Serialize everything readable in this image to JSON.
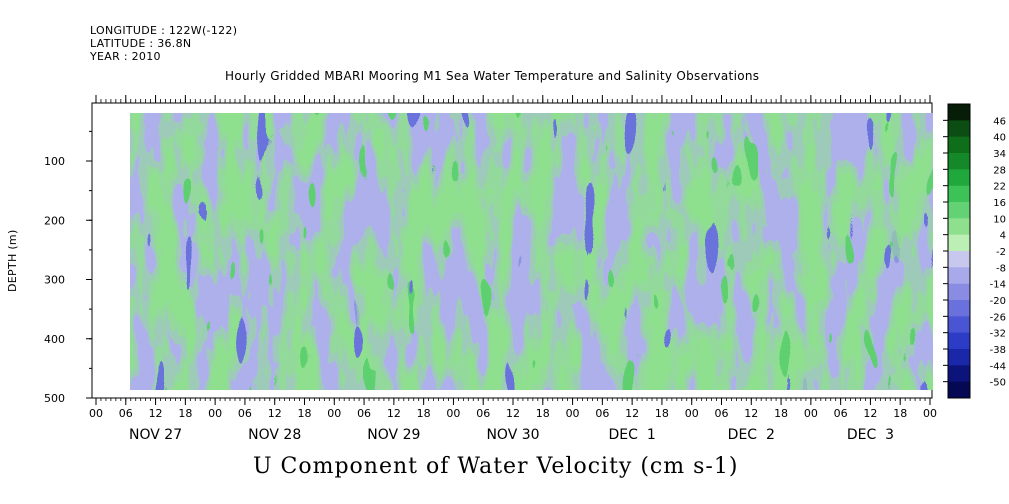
{
  "header": {
    "longitude": "LONGITUDE : 122W(-122)",
    "latitude": "LATITUDE : 36.8N",
    "year": "YEAR : 2010",
    "title": "Hourly Gridded MBARI Mooring M1 Sea Water Temperature and Salinity Observations"
  },
  "chart_data": {
    "type": "heatmap",
    "title": "Hourly Gridded MBARI Mooring M1 Sea Water Temperature and Salinity Observations",
    "xlabel": "U Component of Water Velocity (cm s-1)",
    "ylabel": "DEPTH (m)",
    "y_ticks": [
      100,
      200,
      300,
      400,
      500
    ],
    "ylim": [
      500,
      0
    ],
    "x_hour_labels": [
      "00",
      "06",
      "12",
      "18",
      "00",
      "06",
      "12",
      "18",
      "00",
      "06",
      "12",
      "18",
      "00",
      "06",
      "12",
      "18",
      "00",
      "06",
      "12",
      "18",
      "00",
      "06",
      "12",
      "18",
      "00",
      "06",
      "12",
      "18",
      "00"
    ],
    "x_day_labels": [
      "NOV 27",
      "NOV 28",
      "NOV 29",
      "NOV 30",
      "DEC  1",
      "DEC  2",
      "DEC  3"
    ],
    "colorbar": {
      "levels": [
        -50,
        -44,
        -38,
        -32,
        -26,
        -20,
        -14,
        -8,
        -2,
        4,
        10,
        16,
        22,
        28,
        34,
        40,
        46
      ],
      "labels": [
        "46",
        "40",
        "34",
        "28",
        "22",
        "16",
        "10",
        "4",
        "-2",
        "-8",
        "-14",
        "-20",
        "-26",
        "-32",
        "-38",
        "-44",
        "-50"
      ],
      "colors": [
        "#071d07",
        "#0b4d12",
        "#0f6e1a",
        "#15882a",
        "#20a83c",
        "#3dc257",
        "#63d274",
        "#8fe08e",
        "#bcefb3",
        "#c8c8ef",
        "#a8a9ea",
        "#8a8ce3",
        "#6a70dc",
        "#4a55d3",
        "#2d3cc7",
        "#1a27a8",
        "#0c137a",
        "#050852"
      ],
      "dominant_range": [
        -14,
        16
      ]
    }
  }
}
